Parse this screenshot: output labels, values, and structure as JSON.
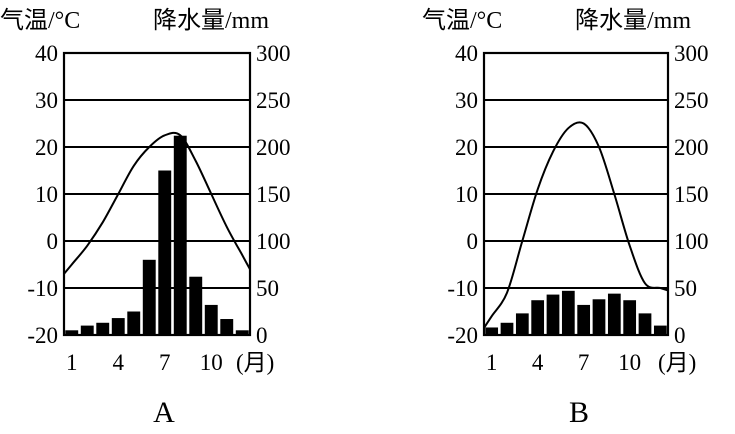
{
  "chart_data": [
    {
      "type": "bar+line",
      "panel_label": "A",
      "temp_axis_title": "气温/°C",
      "precip_axis_title": "降水量/mm",
      "temp_ylim": [
        -20,
        40
      ],
      "temp_ticks": [
        "40",
        "30",
        "20",
        "10",
        "0",
        "-10",
        "-20"
      ],
      "precip_ylim": [
        0,
        300
      ],
      "precip_ticks": [
        "300",
        "250",
        "200",
        "150",
        "100",
        "50",
        "0"
      ],
      "x_ticks": [
        "1",
        "4",
        "7",
        "10"
      ],
      "month_unit": "(月)",
      "months": [
        1,
        2,
        3,
        4,
        5,
        6,
        7,
        8,
        9,
        10,
        11,
        12
      ],
      "precipitation": [
        5,
        10,
        13,
        18,
        25,
        80,
        175,
        212,
        62,
        32,
        17,
        5
      ],
      "temperature": [
        -5,
        -1,
        4,
        10,
        16,
        20,
        22.5,
        22.5,
        17,
        10,
        3,
        -3
      ]
    },
    {
      "type": "bar+line",
      "panel_label": "B",
      "temp_axis_title": "气温/°C",
      "precip_axis_title": "降水量/mm",
      "temp_ylim": [
        -20,
        40
      ],
      "temp_ticks": [
        "40",
        "30",
        "20",
        "10",
        "0",
        "-10",
        "-20"
      ],
      "precip_ylim": [
        0,
        300
      ],
      "precip_ticks": [
        "300",
        "250",
        "200",
        "150",
        "100",
        "50",
        "0"
      ],
      "x_ticks": [
        "1",
        "4",
        "7",
        "10"
      ],
      "month_unit": "(月)",
      "months": [
        1,
        2,
        3,
        4,
        5,
        6,
        7,
        8,
        9,
        10,
        11,
        12
      ],
      "precipitation": [
        8,
        13,
        23,
        37,
        43,
        47,
        32,
        38,
        44,
        37,
        23,
        10
      ],
      "temperature": [
        -16,
        -11,
        0,
        11,
        19,
        24,
        25,
        20,
        10,
        -1,
        -9,
        -10
      ]
    }
  ]
}
